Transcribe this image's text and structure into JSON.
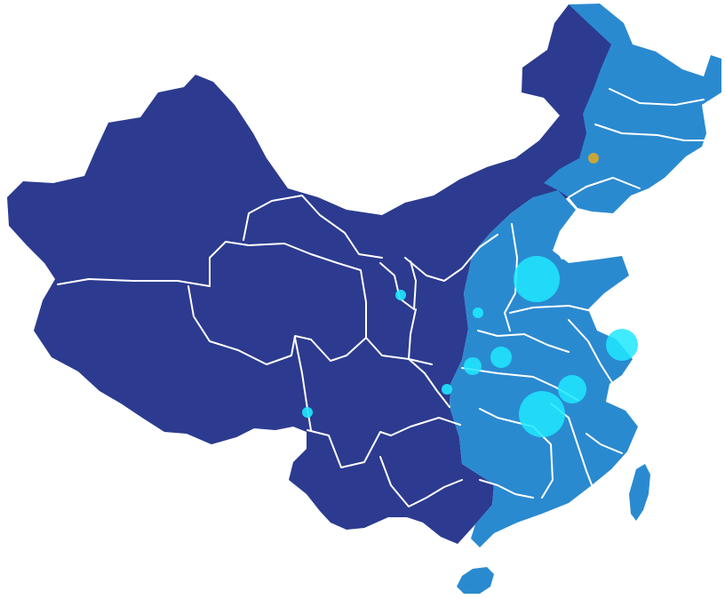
{
  "map": {
    "colors": {
      "background": "#ffffff",
      "western_region": "#2c3b8f",
      "eastern_region": "#2a8ad0",
      "border": "#ffffff",
      "bubble": "#1ee8ff",
      "highlight_marker": "#c8a63a"
    },
    "bubbles": [
      {
        "id": "hebei",
        "size": "large"
      },
      {
        "id": "jiangsu",
        "size": "large"
      },
      {
        "id": "hunan",
        "size": "large"
      },
      {
        "id": "jiangxi",
        "size": "medium"
      },
      {
        "id": "henan-south",
        "size": "small"
      },
      {
        "id": "hubei-west",
        "size": "small"
      },
      {
        "id": "shanxi-south",
        "size": "small"
      },
      {
        "id": "ningxia",
        "size": "small"
      },
      {
        "id": "chongqing",
        "size": "small"
      },
      {
        "id": "yunnan-north",
        "size": "small"
      }
    ],
    "marker": {
      "id": "jilin",
      "color": "#c8a63a"
    }
  }
}
